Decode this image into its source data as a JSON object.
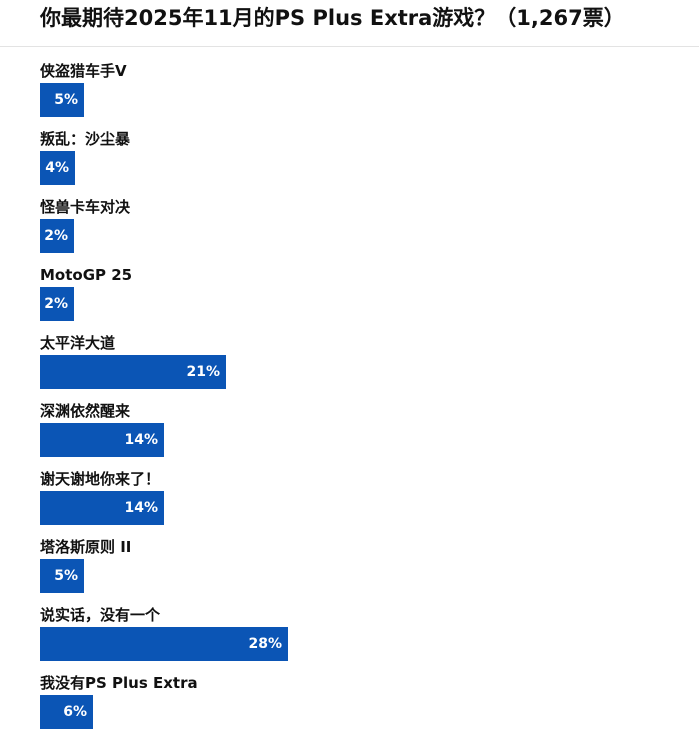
{
  "header": {
    "title": "你最期待2025年11月的PS Plus Extra游戏？（1,267票）"
  },
  "colors": {
    "bar": "#0b55b5",
    "bar_text": "#ffffff",
    "divider": "#e3e3e3"
  },
  "chart_data": {
    "type": "bar",
    "title": "你最期待2025年11月的PS Plus Extra游戏？（1,267票）",
    "orientation": "horizontal",
    "total_votes": "1,267票",
    "categories": [
      "侠盗猎车手V",
      "叛乱：沙尘暴",
      "怪兽卡车对决",
      "MotoGP 25",
      "太平洋大道",
      "深渊依然醒来",
      "谢天谢地你来了！",
      "塔洛斯原则 II",
      "说实话，没有一个",
      "我没有PS Plus Extra"
    ],
    "values": [
      5,
      4,
      2,
      2,
      21,
      14,
      14,
      5,
      28,
      6
    ],
    "value_labels": [
      "5%",
      "4%",
      "2%",
      "2%",
      "21%",
      "14%",
      "14%",
      "5%",
      "28%",
      "6%"
    ],
    "unit": "%",
    "grid": false
  }
}
